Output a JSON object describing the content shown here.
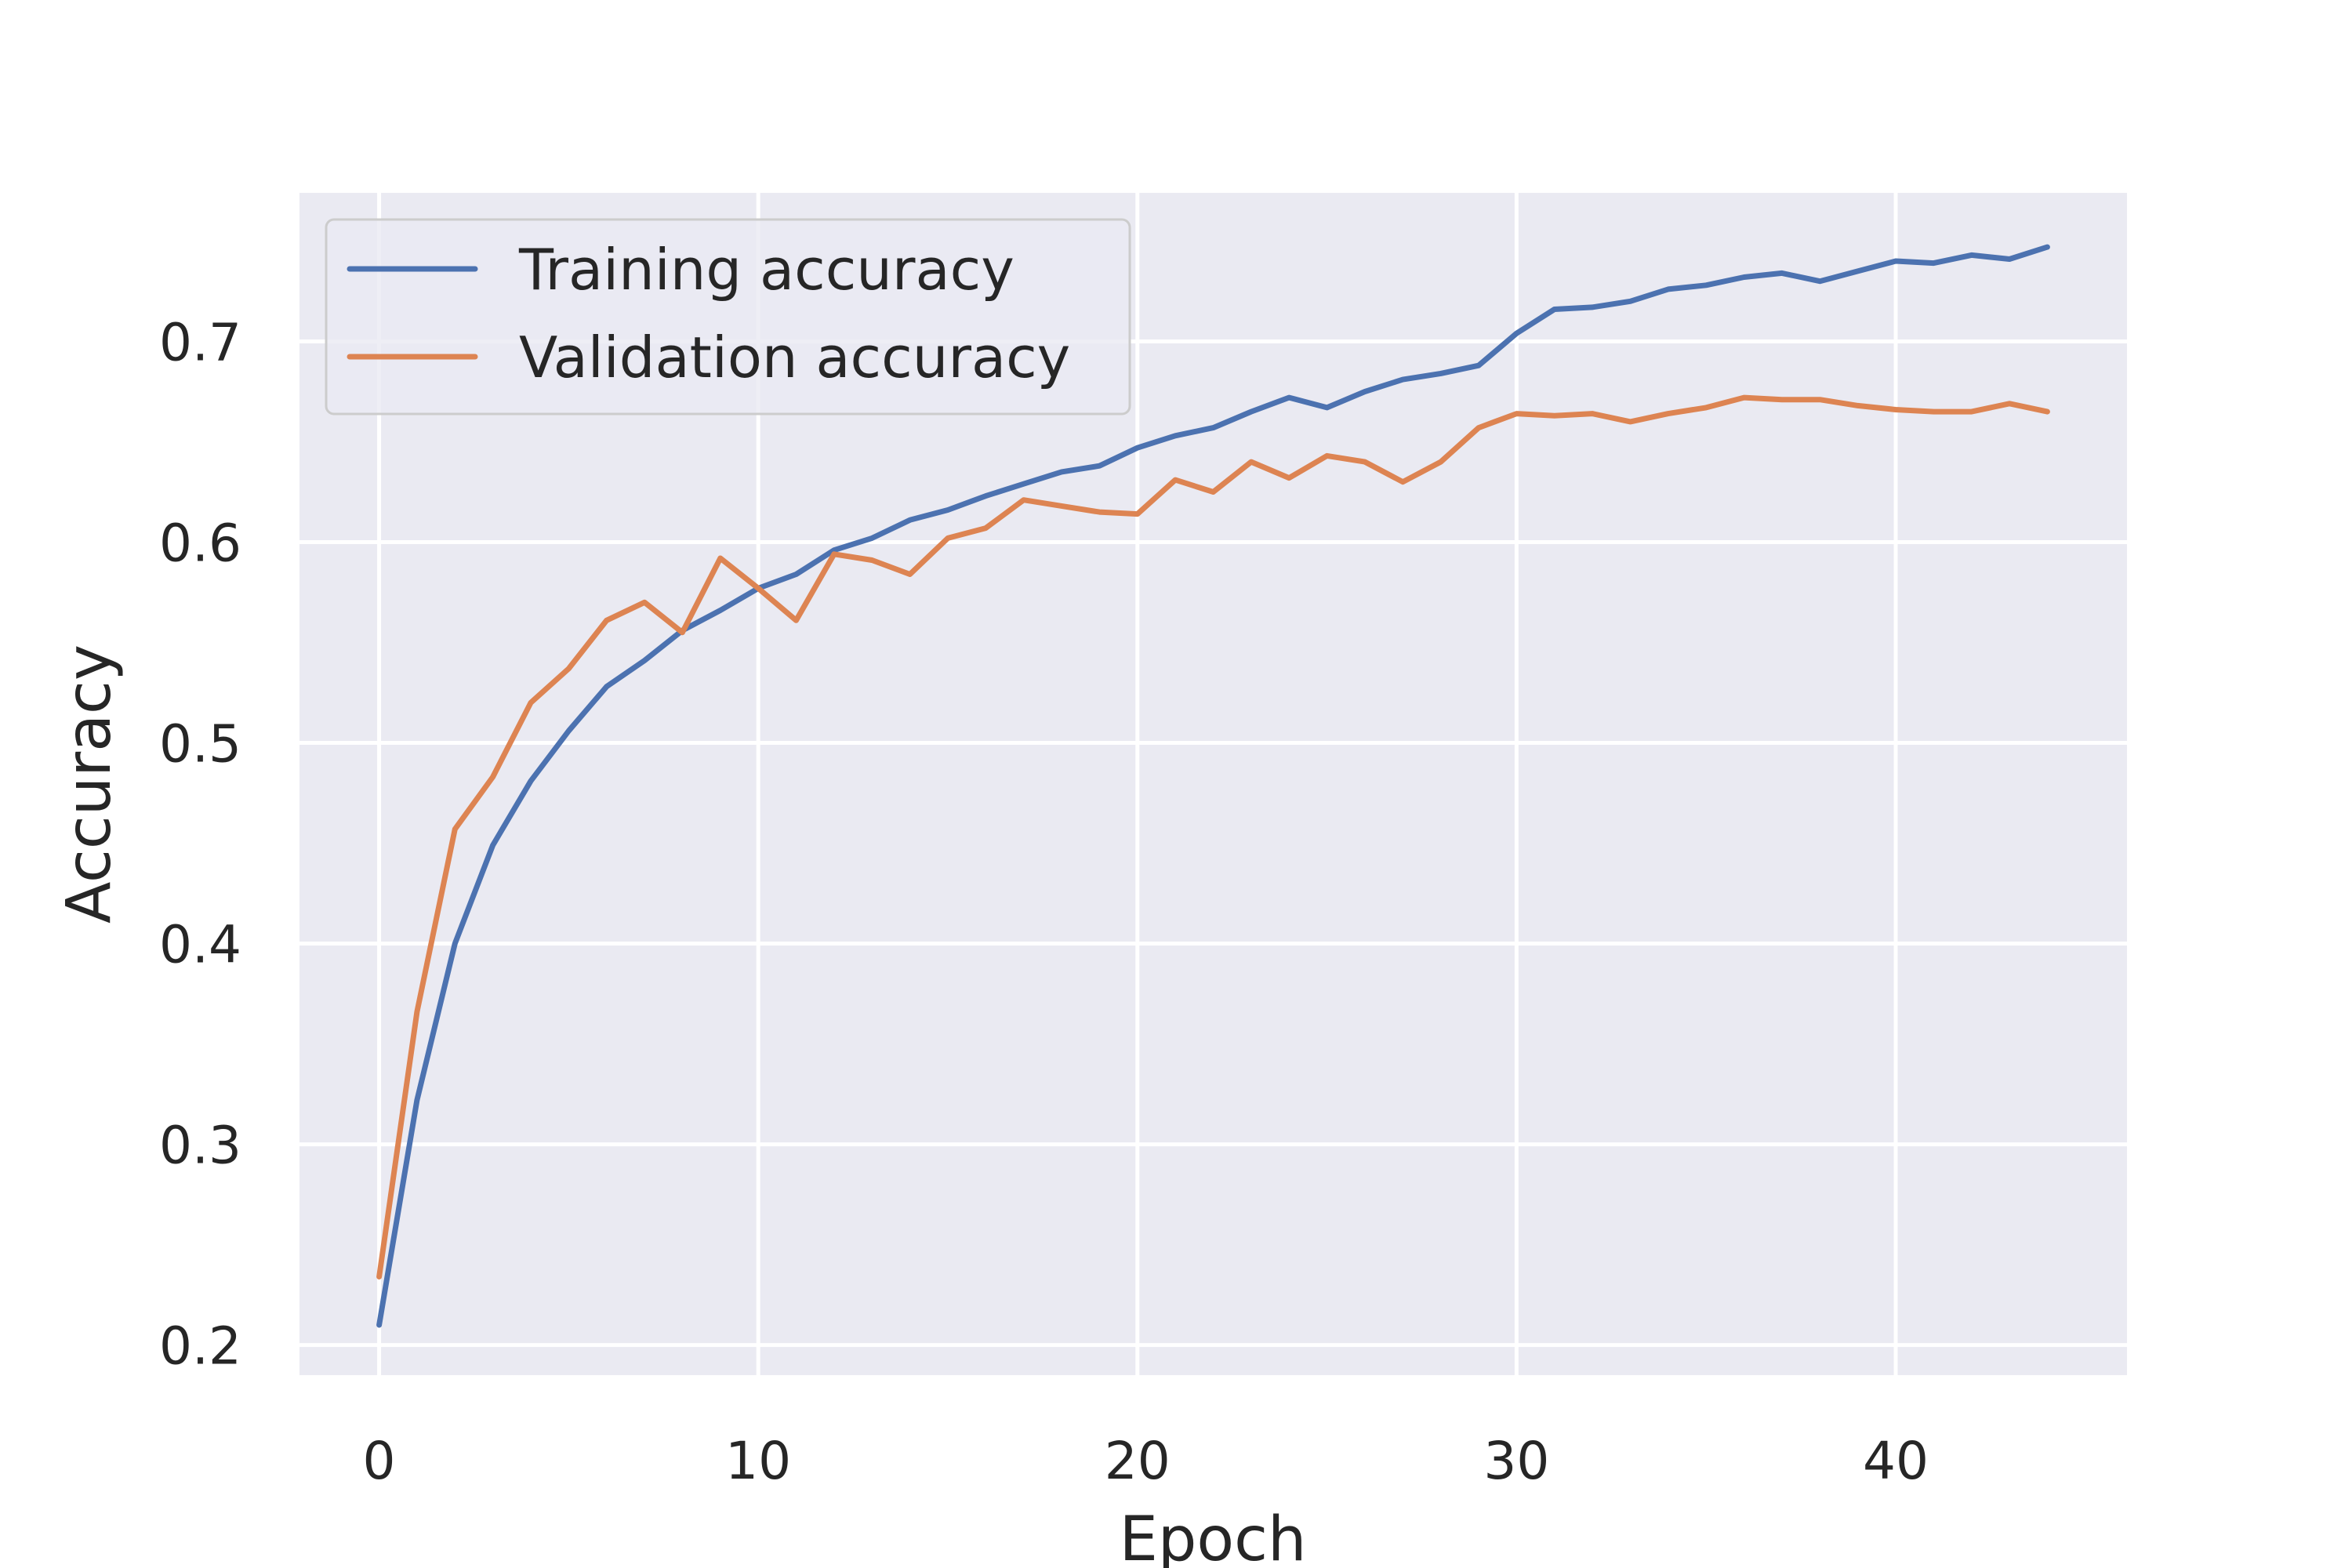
{
  "chart_data": {
    "type": "line",
    "title": "",
    "xlabel": "Epoch",
    "ylabel": "Accuracy",
    "xlim": [
      -2.1,
      46.1
    ],
    "ylim": [
      0.185,
      0.774
    ],
    "xticks": [
      0,
      10,
      20,
      30,
      40
    ],
    "xtick_labels": [
      "0",
      "10",
      "20",
      "30",
      "40"
    ],
    "yticks": [
      0.2,
      0.3,
      0.4,
      0.5,
      0.6,
      0.7
    ],
    "ytick_labels": [
      "0.2",
      "0.3",
      "0.4",
      "0.5",
      "0.6",
      "0.7"
    ],
    "grid": true,
    "legend_position": "top-left",
    "background_color": "#eaeaf2",
    "x": [
      0,
      1,
      2,
      3,
      4,
      5,
      6,
      7,
      8,
      9,
      10,
      11,
      12,
      13,
      14,
      15,
      16,
      17,
      18,
      19,
      20,
      21,
      22,
      23,
      24,
      25,
      26,
      27,
      28,
      29,
      30,
      31,
      32,
      33,
      34,
      35,
      36,
      37,
      38,
      39,
      40,
      41,
      42,
      43,
      44
    ],
    "series": [
      {
        "name": "Training accuracy",
        "color": "#4c72b0",
        "values": [
          0.21,
          0.322,
          0.4,
          0.449,
          0.481,
          0.506,
          0.528,
          0.541,
          0.556,
          0.566,
          0.577,
          0.584,
          0.596,
          0.602,
          0.611,
          0.616,
          0.623,
          0.629,
          0.635,
          0.638,
          0.647,
          0.653,
          0.657,
          0.665,
          0.672,
          0.667,
          0.675,
          0.681,
          0.684,
          0.688,
          0.704,
          0.716,
          0.717,
          0.72,
          0.726,
          0.728,
          0.732,
          0.734,
          0.73,
          0.735,
          0.74,
          0.739,
          0.743,
          0.741,
          0.747
        ]
      },
      {
        "name": "Validation accuracy",
        "color": "#dd8452",
        "values": [
          0.234,
          0.366,
          0.457,
          0.483,
          0.52,
          0.537,
          0.561,
          0.57,
          0.555,
          0.592,
          0.577,
          0.561,
          0.594,
          0.591,
          0.584,
          0.602,
          0.607,
          0.621,
          0.618,
          0.615,
          0.614,
          0.631,
          0.625,
          0.64,
          0.632,
          0.643,
          0.64,
          0.63,
          0.64,
          0.657,
          0.664,
          0.663,
          0.664,
          0.66,
          0.664,
          0.667,
          0.672,
          0.671,
          0.671,
          0.668,
          0.666,
          0.665,
          0.665,
          0.669,
          0.665
        ]
      }
    ]
  }
}
